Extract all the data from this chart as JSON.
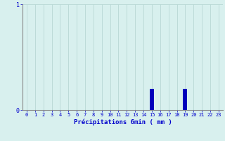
{
  "xlabel": "Précipitations 6min ( mm )",
  "hours": [
    0,
    1,
    2,
    3,
    4,
    5,
    6,
    7,
    8,
    9,
    10,
    11,
    12,
    13,
    14,
    15,
    16,
    17,
    18,
    19,
    20,
    21,
    22,
    23
  ],
  "values": [
    0,
    0,
    0,
    0,
    0,
    0,
    0,
    0,
    0,
    0,
    0,
    0,
    0,
    0,
    0,
    0.2,
    0,
    0,
    0,
    0.2,
    0,
    0,
    0,
    0
  ],
  "ylim": [
    0,
    1
  ],
  "xlim": [
    -0.5,
    23.5
  ],
  "bar_color": "#0000bb",
  "background_color": "#d8f0ee",
  "text_color": "#0000cc",
  "grid_color": "#b8d8d4",
  "axis_color": "#888888",
  "bar_width": 0.5,
  "yticks": [
    0,
    1
  ],
  "title_fontsize": 6,
  "xlabel_fontsize": 6.5,
  "tick_fontsize": 5
}
